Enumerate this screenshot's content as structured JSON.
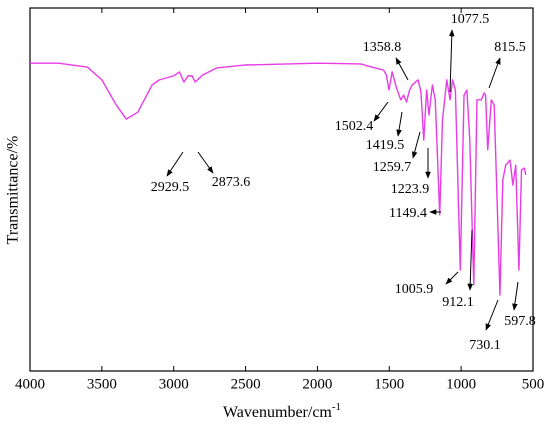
{
  "chart_data": {
    "type": "line",
    "y_label": "Transmittance/%",
    "x_label": "Wavenumber/cm",
    "x_label_sup": "-1",
    "xlim": [
      4000,
      500
    ],
    "xticks": [
      4000,
      3500,
      3000,
      2500,
      2000,
      1500,
      1000,
      500
    ],
    "ylim": [
      0,
      100
    ],
    "color": "#e83ce8",
    "series": [
      {
        "x": [
          4000,
          3800,
          3600,
          3500,
          3400,
          3330,
          3250,
          3150,
          3100,
          3000,
          2960,
          2929,
          2900,
          2873,
          2850,
          2800,
          2700,
          2500,
          2000,
          1700,
          1600,
          1540,
          1520,
          1502,
          1480,
          1450,
          1420,
          1400,
          1380,
          1359,
          1340,
          1300,
          1280,
          1260,
          1240,
          1224,
          1200,
          1180,
          1149,
          1130,
          1100,
          1077,
          1060,
          1040,
          1006,
          980,
          960,
          940,
          912,
          890,
          860,
          840,
          830,
          815,
          790,
          770,
          750,
          730,
          710,
          690,
          660,
          640,
          620,
          598,
          580,
          560,
          550
        ],
        "values": [
          84.8,
          84.8,
          83.7,
          80.2,
          73.3,
          69.4,
          71.3,
          78.8,
          80.2,
          81.3,
          82.4,
          79.6,
          81.3,
          81.3,
          79.6,
          81.5,
          83.5,
          84.3,
          84.8,
          84.6,
          83.5,
          82.9,
          81.5,
          77.4,
          82.4,
          78.0,
          74.7,
          76.0,
          74.1,
          77.4,
          78.8,
          80.2,
          76.9,
          63.6,
          77.4,
          70.5,
          78.8,
          74.7,
          43.0,
          69.1,
          80.2,
          74.7,
          80.2,
          77.4,
          27.8,
          76.0,
          77.4,
          63.6,
          23.7,
          74.7,
          74.7,
          76.6,
          76.0,
          60.9,
          74.7,
          73.3,
          47.1,
          20.9,
          52.6,
          56.7,
          58.1,
          51.2,
          56.7,
          27.8,
          55.4,
          55.9,
          54.0
        ]
      }
    ],
    "annotations": [
      "2929.5",
      "2873.6",
      "1358.8",
      "1502.4",
      "1419.5",
      "1259.7",
      "1223.9",
      "1149.4",
      "1077.5",
      "815.5",
      "1005.9",
      "912.1",
      "730.1",
      "597.8"
    ]
  }
}
